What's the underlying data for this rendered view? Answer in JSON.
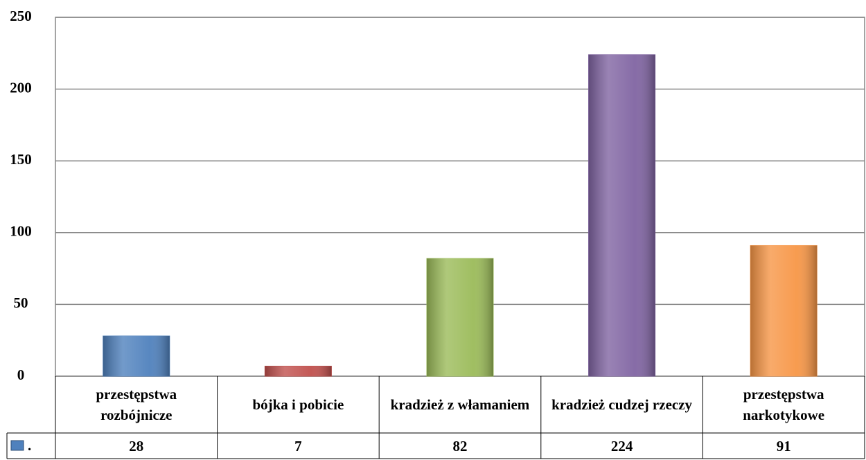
{
  "chart_data": {
    "type": "bar",
    "categories": [
      "przestępstwa rozbójnicze",
      "bójka i pobicie",
      "kradzież z włamaniem",
      "kradzież cudzej rzeczy",
      "przestępstwa narkotykowe"
    ],
    "series": [
      {
        "name": ".",
        "color": "#4f81bd",
        "colors": [
          "#4f81bd",
          "#c0504d",
          "#9bbb59",
          "#8064a2",
          "#f79646"
        ],
        "values": [
          28,
          7,
          82,
          224,
          91
        ]
      }
    ],
    "ylim": [
      0,
      250
    ],
    "yticks": [
      0,
      50,
      100,
      150,
      200,
      250
    ],
    "grid": true
  }
}
